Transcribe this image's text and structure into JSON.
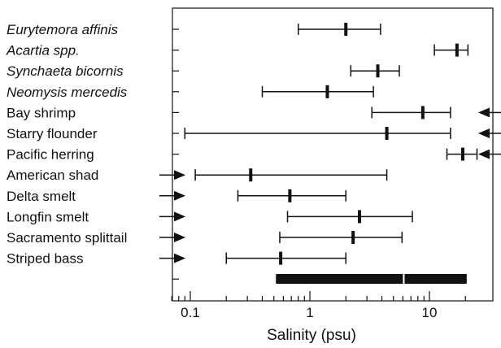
{
  "chart_data": {
    "type": "range",
    "title": "",
    "xlabel": "Salinity (psu)",
    "ylabel": "",
    "x_scale": "log",
    "xlim": [
      0.07,
      27
    ],
    "x_ticks": [
      {
        "value": 0.1,
        "label": "0.1"
      },
      {
        "value": 1,
        "label": "1"
      },
      {
        "value": 10,
        "label": "10"
      }
    ],
    "series": [
      {
        "name": "Eurytemora affinis",
        "italic": true,
        "min": 0.8,
        "center": 2.0,
        "max": 3.9
      },
      {
        "name": "Acartia spp.",
        "italic": true,
        "min": 11,
        "center": 17,
        "max": 21
      },
      {
        "name": "Synchaeta bicornis",
        "italic": true,
        "min": 2.2,
        "center": 3.7,
        "max": 5.6
      },
      {
        "name": "Neomysis mercedis",
        "italic": true,
        "min": 0.4,
        "center": 1.4,
        "max": 3.4
      },
      {
        "name": "Bay shrimp",
        "italic": false,
        "min": 3.3,
        "center": 8.8,
        "max": 15,
        "arrow_right": true
      },
      {
        "name": "Starry flounder",
        "italic": false,
        "min": 0.09,
        "center": 4.4,
        "max": 15,
        "arrow_right": true
      },
      {
        "name": "Pacific herring",
        "italic": false,
        "min": 14,
        "center": 19,
        "max": 25,
        "arrow_right": true
      },
      {
        "name": "American shad",
        "italic": false,
        "min": 0.11,
        "center": 0.32,
        "max": 4.4,
        "arrow_left": true
      },
      {
        "name": "Delta smelt",
        "italic": false,
        "min": 0.25,
        "center": 0.68,
        "max": 2.0,
        "arrow_left": true
      },
      {
        "name": "Longfin smelt",
        "italic": false,
        "min": 0.65,
        "center": 2.6,
        "max": 7.2,
        "arrow_left": true
      },
      {
        "name": "Sacramento splittail",
        "italic": false,
        "min": 0.56,
        "center": 2.3,
        "max": 5.9,
        "arrow_left": true
      },
      {
        "name": "Striped bass",
        "italic": false,
        "min": 0.2,
        "center": 0.57,
        "max": 2.0,
        "arrow_left": true
      }
    ],
    "bottom_bars": [
      {
        "min": 0.52,
        "max": 6.0
      },
      {
        "min": 6.2,
        "max": 20.5
      }
    ],
    "legend": "none",
    "grid": false
  }
}
